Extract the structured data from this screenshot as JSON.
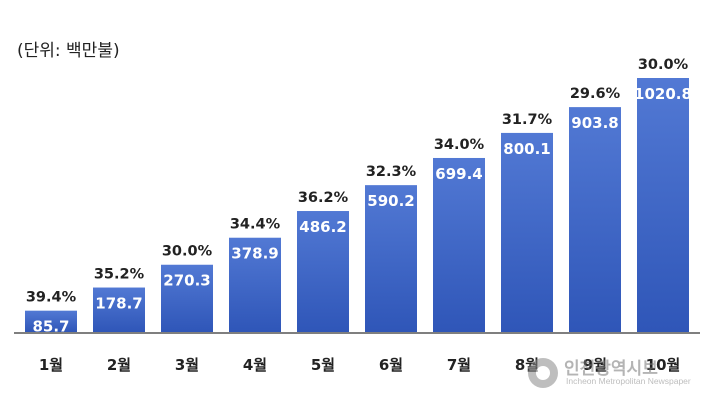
{
  "chart_data": {
    "type": "bar",
    "unit_label": "(단위: 백만불)",
    "categories": [
      "1월",
      "2월",
      "3월",
      "4월",
      "5월",
      "6월",
      "7월",
      "8월",
      "9월",
      "10월"
    ],
    "values": [
      85.7,
      178.7,
      270.3,
      378.9,
      486.2,
      590.2,
      699.4,
      800.1,
      903.8,
      1020.8
    ],
    "value_labels": [
      "85.7",
      "178.7",
      "270.3",
      "378.9",
      "486.2",
      "590.2",
      "699.4",
      "800.1",
      "903.8",
      "1020.8"
    ],
    "rate_labels": [
      "39.4%",
      "35.2%",
      "30.0%",
      "34.4%",
      "36.2%",
      "32.3%",
      "34.0%",
      "31.7%",
      "29.6%",
      "30.0%"
    ],
    "ylim": [
      0,
      1020.8
    ],
    "grid": false,
    "bar_color_top": "#5279d4",
    "bar_color_bottom": "#2f56b8"
  },
  "watermark": {
    "title": "인천광역시보",
    "subtitle": "Incheon Metropolitan Newspaper"
  }
}
